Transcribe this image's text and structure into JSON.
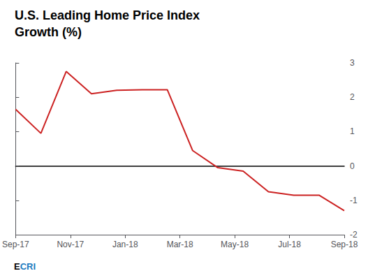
{
  "chart_data": {
    "type": "line",
    "title": "U.S. Leading Home Price Index",
    "subtitle": "Growth (%)",
    "x": [
      0,
      0.9230769230769231,
      1.8461538461538463,
      2.769230769230769,
      3.6923076923076925,
      4.615384615384616,
      5.538461538461538,
      6.461538461538462,
      7.384615384615385,
      8.307692307692308,
      9.230769230769232,
      10.153846153846153,
      11.076923076923077,
      12
    ],
    "values": [
      1.65,
      0.95,
      2.75,
      2.1,
      2.2,
      2.22,
      2.22,
      0.45,
      -0.05,
      -0.15,
      -0.75,
      -0.85,
      -0.85,
      -1.3
    ],
    "color": "#cc2222",
    "xlim": [
      0,
      12
    ],
    "xticks": [
      {
        "value": 0,
        "label": "Sep-17"
      },
      {
        "value": 2,
        "label": "Nov-17"
      },
      {
        "value": 4,
        "label": "Jan-18"
      },
      {
        "value": 6,
        "label": "Mar-18"
      },
      {
        "value": 8,
        "label": "May-18"
      },
      {
        "value": 10,
        "label": "Jul-18"
      },
      {
        "value": 12,
        "label": "Sep-18"
      }
    ],
    "ylim": [
      -2,
      3
    ],
    "yticks": [
      -2,
      -1,
      0,
      1,
      2,
      3
    ],
    "grid": false,
    "annotations": [
      {
        "text": "E",
        "color": "#000000"
      },
      {
        "text": "CRI",
        "color": "#1a7abf"
      }
    ]
  }
}
